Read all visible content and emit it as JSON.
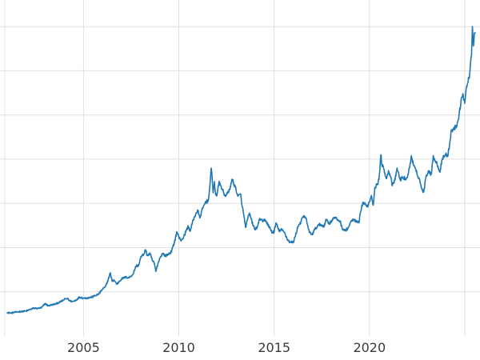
{
  "chart_data": {
    "type": "line",
    "title": "",
    "xlabel": "",
    "ylabel": "",
    "legend": false,
    "grid": true,
    "background_color": "#ffffff",
    "grid_color": "#e0e0e0",
    "line_color": "#1f77b4",
    "tick_label_color": "#3a3a3a",
    "tick_font_size": 16,
    "xlim": [
      2000.62,
      2025.8
    ],
    "ylim": [
      0,
      3800
    ],
    "x_ticks": [
      2005,
      2010,
      2015,
      2020
    ],
    "x_tick_labels": [
      "2005",
      "2010",
      "2015",
      "2020"
    ],
    "x_gridlines": [
      2005,
      2010,
      2015,
      2020,
      2025
    ],
    "y_gridlines": [
      500,
      1000,
      1500,
      2000,
      2500,
      3000,
      3500
    ],
    "series": [
      {
        "name": "series-1",
        "x": [
          2001.0,
          2001.2,
          2001.4,
          2001.6,
          2001.8,
          2002.0,
          2002.2,
          2002.4,
          2002.6,
          2002.8,
          2003.0,
          2003.15,
          2003.3,
          2003.5,
          2003.7,
          2003.85,
          2004.0,
          2004.15,
          2004.3,
          2004.45,
          2004.6,
          2004.8,
          2005.0,
          2005.2,
          2005.4,
          2005.6,
          2005.8,
          2006.0,
          2006.15,
          2006.3,
          2006.4,
          2006.5,
          2006.6,
          2006.75,
          2006.9,
          2007.0,
          2007.2,
          2007.4,
          2007.6,
          2007.75,
          2007.9,
          2008.0,
          2008.15,
          2008.25,
          2008.35,
          2008.5,
          2008.6,
          2008.7,
          2008.8,
          2008.9,
          2009.0,
          2009.15,
          2009.3,
          2009.45,
          2009.6,
          2009.75,
          2009.9,
          2010.0,
          2010.1,
          2010.25,
          2010.4,
          2010.5,
          2010.6,
          2010.75,
          2010.9,
          2011.0,
          2011.1,
          2011.25,
          2011.4,
          2011.55,
          2011.65,
          2011.7,
          2011.75,
          2011.8,
          2011.87,
          2011.93,
          2012.0,
          2012.1,
          2012.2,
          2012.3,
          2012.4,
          2012.5,
          2012.6,
          2012.7,
          2012.8,
          2012.9,
          2013.0,
          2013.1,
          2013.25,
          2013.32,
          2013.4,
          2013.5,
          2013.6,
          2013.7,
          2013.8,
          2013.9,
          2014.0,
          2014.15,
          2014.25,
          2014.4,
          2014.5,
          2014.6,
          2014.75,
          2014.9,
          2015.0,
          2015.1,
          2015.25,
          2015.4,
          2015.55,
          2015.7,
          2015.85,
          2016.0,
          2016.1,
          2016.25,
          2016.4,
          2016.55,
          2016.7,
          2016.85,
          2017.0,
          2017.15,
          2017.3,
          2017.45,
          2017.6,
          2017.75,
          2017.9,
          2018.0,
          2018.15,
          2018.3,
          2018.45,
          2018.6,
          2018.75,
          2018.9,
          2019.0,
          2019.15,
          2019.3,
          2019.45,
          2019.55,
          2019.65,
          2019.8,
          2019.9,
          2020.0,
          2020.1,
          2020.2,
          2020.28,
          2020.4,
          2020.5,
          2020.6,
          2020.65,
          2020.75,
          2020.9,
          2021.0,
          2021.1,
          2021.2,
          2021.35,
          2021.45,
          2021.6,
          2021.75,
          2021.9,
          2022.0,
          2022.1,
          2022.2,
          2022.3,
          2022.45,
          2022.6,
          2022.75,
          2022.85,
          2022.95,
          2023.0,
          2023.1,
          2023.25,
          2023.35,
          2023.45,
          2023.6,
          2023.7,
          2023.8,
          2023.9,
          2024.0,
          2024.1,
          2024.2,
          2024.3,
          2024.45,
          2024.6,
          2024.7,
          2024.8,
          2024.9,
          2025.0,
          2025.08,
          2025.15,
          2025.22,
          2025.3,
          2025.35,
          2025.4,
          2025.45,
          2025.5,
          2025.55
        ],
        "y": [
          265,
          260,
          268,
          275,
          278,
          282,
          300,
          315,
          312,
          320,
          368,
          340,
          350,
          360,
          378,
          392,
          415,
          425,
          395,
          390,
          405,
          440,
          428,
          430,
          437,
          455,
          475,
          530,
          555,
          640,
          715,
          620,
          635,
          585,
          625,
          645,
          665,
          660,
          700,
          790,
          800,
          890,
          920,
          975,
          910,
          930,
          860,
          830,
          730,
          815,
          880,
          935,
          905,
          925,
          950,
          1045,
          1180,
          1120,
          1080,
          1115,
          1200,
          1240,
          1185,
          1310,
          1385,
          1420,
          1335,
          1440,
          1515,
          1530,
          1750,
          1900,
          1780,
          1620,
          1745,
          1600,
          1590,
          1735,
          1700,
          1650,
          1590,
          1600,
          1620,
          1690,
          1770,
          1715,
          1660,
          1580,
          1600,
          1470,
          1380,
          1230,
          1310,
          1390,
          1320,
          1250,
          1200,
          1250,
          1330,
          1290,
          1320,
          1290,
          1230,
          1170,
          1180,
          1280,
          1190,
          1200,
          1170,
          1090,
          1060,
          1060,
          1120,
          1240,
          1290,
          1360,
          1310,
          1170,
          1150,
          1210,
          1250,
          1260,
          1240,
          1320,
          1270,
          1300,
          1340,
          1320,
          1300,
          1210,
          1190,
          1230,
          1280,
          1320,
          1290,
          1280,
          1410,
          1510,
          1480,
          1470,
          1520,
          1590,
          1480,
          1680,
          1710,
          1770,
          2050,
          1940,
          1890,
          1780,
          1870,
          1810,
          1700,
          1770,
          1900,
          1770,
          1790,
          1780,
          1800,
          1900,
          2040,
          1940,
          1860,
          1790,
          1660,
          1630,
          1780,
          1820,
          1870,
          1830,
          2040,
          1980,
          1920,
          1850,
          1990,
          2040,
          2060,
          2030,
          2160,
          2330,
          2340,
          2400,
          2500,
          2650,
          2740,
          2630,
          2800,
          2860,
          2910,
          3080,
          3160,
          3500,
          3280,
          3420,
          3430
        ]
      }
    ]
  }
}
